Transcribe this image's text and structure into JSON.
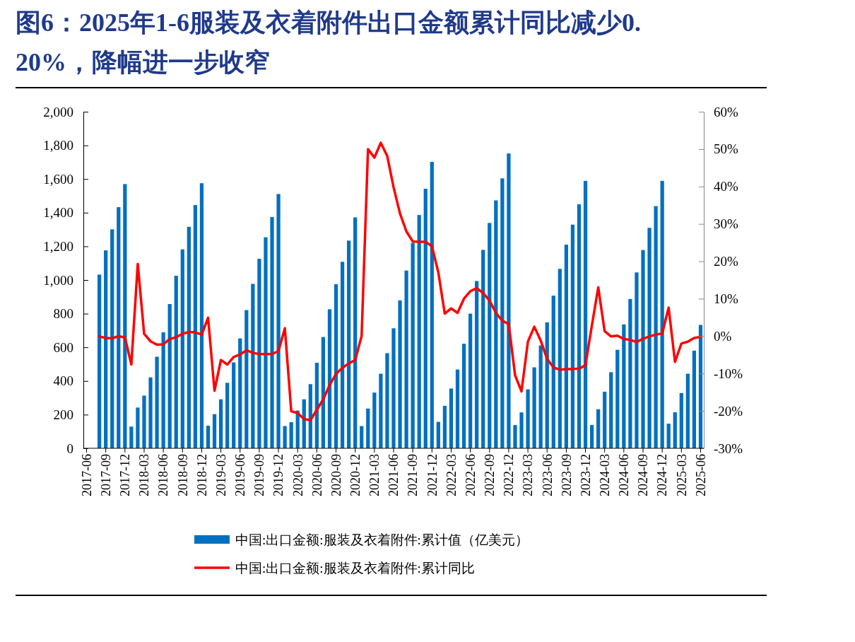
{
  "chart_data": {
    "type": "bar",
    "title": "图6：2025年1-6服装及衣着附件出口金额累计同比减少0.20%，降幅进一步收窄",
    "categories": [
      "2017-06",
      null,
      null,
      "2017-09",
      null,
      null,
      "2017-12",
      null,
      null,
      "2018-03",
      null,
      null,
      "2018-06",
      null,
      null,
      "2018-09",
      null,
      null,
      "2018-12",
      null,
      null,
      "2019-03",
      null,
      null,
      "2019-06",
      null,
      null,
      "2019-09",
      null,
      null,
      "2019-12",
      null,
      null,
      "2020-03",
      null,
      null,
      "2020-06",
      null,
      null,
      "2020-09",
      null,
      null,
      "2020-12",
      null,
      null,
      "2021-03",
      null,
      null,
      "2021-06",
      null,
      null,
      "2021-09",
      null,
      null,
      "2021-12",
      null,
      null,
      "2022-03",
      null,
      null,
      "2022-06",
      null,
      null,
      "2022-09",
      null,
      null,
      "2022-12",
      null,
      null,
      "2023-03",
      null,
      null,
      "2023-06",
      null,
      null,
      "2023-09",
      null,
      null,
      "2023-12",
      null,
      null,
      "2024-03",
      null,
      null,
      "2024-06",
      null,
      null,
      "2024-09",
      null,
      null,
      "2024-12",
      null,
      null,
      "2025-03",
      null,
      null,
      "2025-06"
    ],
    "series": [
      {
        "name": "中国:出口金额:服装及衣着附件:累计值（亿美元）",
        "color": "#0070c0",
        "values": [
          null,
          null,
          1032,
          1176,
          1301,
          1433,
          1570,
          129,
          242,
          313,
          421,
          544,
          689,
          857,
          1025,
          1182,
          1316,
          1445,
          1575,
          134,
          203,
          291,
          389,
          510,
          653,
          821,
          977,
          1126,
          1254,
          1374,
          1511,
          132,
          155,
          224,
          291,
          381,
          508,
          661,
          826,
          975,
          1108,
          1234,
          1372,
          132,
          236,
          331,
          443,
          565,
          713,
          879,
          1056,
          1221,
          1386,
          1542,
          1702,
          157,
          252,
          355,
          468,
          621,
          800,
          994,
          1179,
          1339,
          1473,
          1604,
          1752,
          138,
          213,
          350,
          481,
          611,
          748,
          907,
          1066,
          1210,
          1329,
          1450,
          1589,
          138,
          232,
          336,
          452,
          585,
          736,
          887,
          1045,
          1178,
          1310,
          1439,
          1589,
          146,
          214,
          328,
          443,
          580,
          733
        ]
      },
      {
        "name": "中国:出口金额:服装及衣着附件:累计同比",
        "type": "line",
        "axis": "y2",
        "color": "#ff0000",
        "values": [
          null,
          null,
          -0.1,
          -0.5,
          -0.6,
          0.0,
          -0.4,
          -7.6,
          19.3,
          0.6,
          -1.4,
          -2.3,
          -2.2,
          -0.8,
          -0.3,
          0.6,
          1.1,
          1.0,
          0.4,
          4.9,
          -14.6,
          -6.4,
          -7.6,
          -5.6,
          -4.9,
          -3.8,
          -4.5,
          -4.8,
          -4.8,
          -4.8,
          -4.0,
          2.1,
          -20.1,
          -20.6,
          -22.2,
          -22.5,
          -19.7,
          -16.9,
          -13.1,
          -10.1,
          -8.5,
          -7.3,
          -6.4,
          0.0,
          50.0,
          47.7,
          51.7,
          48.2,
          39.8,
          32.8,
          28.0,
          25.3,
          25.2,
          25.2,
          24.0,
          17.0,
          6.0,
          7.4,
          6.2,
          10.0,
          12.0,
          12.8,
          11.5,
          9.5,
          6.2,
          4.1,
          3.2,
          -10.5,
          -14.8,
          -1.5,
          2.5,
          -1.2,
          -6.1,
          -8.4,
          -9.0,
          -8.8,
          -8.8,
          -8.7,
          -7.8,
          2.8,
          13.0,
          1.3,
          -0.1,
          0.1,
          -0.8,
          -1.0,
          -1.6,
          -0.7,
          -0.1,
          0.4,
          0.7,
          7.6,
          -6.9,
          -2.0,
          -1.5,
          -0.5,
          -0.2
        ]
      }
    ],
    "ylim": [
      0,
      2000
    ],
    "yticks": [
      0,
      200,
      400,
      600,
      800,
      {
        "value": 1000,
        "label": "1,000"
      },
      {
        "value": 1200,
        "label": "1,200"
      },
      {
        "value": 1400,
        "label": "1,400"
      },
      {
        "value": 1600,
        "label": "1,600"
      },
      {
        "value": 1800,
        "label": "1,800"
      },
      {
        "value": 2000,
        "label": "2,000"
      }
    ],
    "y2lim": [
      -30,
      60
    ],
    "y2ticks": [
      {
        "value": -30,
        "label": "-30%"
      },
      {
        "value": -20,
        "label": "-20%"
      },
      {
        "value": -10,
        "label": "-10%"
      },
      {
        "value": 0,
        "label": "0%"
      },
      {
        "value": 10,
        "label": "10%"
      },
      {
        "value": 20,
        "label": "20%"
      },
      {
        "value": 30,
        "label": "30%"
      },
      {
        "value": 40,
        "label": "40%"
      },
      {
        "value": 50,
        "label": "50%"
      },
      {
        "value": 60,
        "label": "60%"
      }
    ],
    "legend": "bottom",
    "grid": false
  }
}
